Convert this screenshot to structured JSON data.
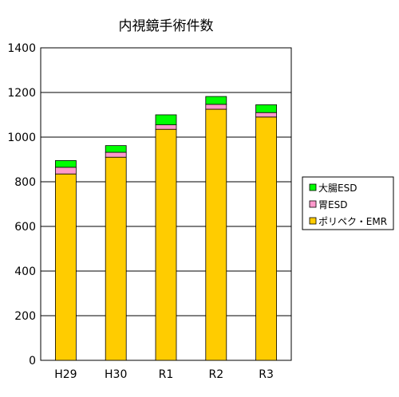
{
  "chart_data": {
    "type": "bar",
    "stacked": true,
    "title": "内視鏡手術件数",
    "xlabel": "",
    "ylabel": "",
    "categories": [
      "H29",
      "H30",
      "R1",
      "R2",
      "R3"
    ],
    "ylim": [
      0,
      1400
    ],
    "yticks": [
      0,
      200,
      400,
      600,
      800,
      1000,
      1200,
      1400
    ],
    "grid": true,
    "legend_position": "right",
    "series": [
      {
        "name": "ポリペク・EMR",
        "color": "#FFCC00",
        "values": [
          835,
          910,
          1035,
          1125,
          1090
        ]
      },
      {
        "name": "胃ESD",
        "color": "#FF99CC",
        "values": [
          30,
          22,
          20,
          22,
          20
        ]
      },
      {
        "name": "大腸ESD",
        "color": "#00FF00",
        "values": [
          30,
          30,
          45,
          35,
          35
        ]
      }
    ]
  }
}
